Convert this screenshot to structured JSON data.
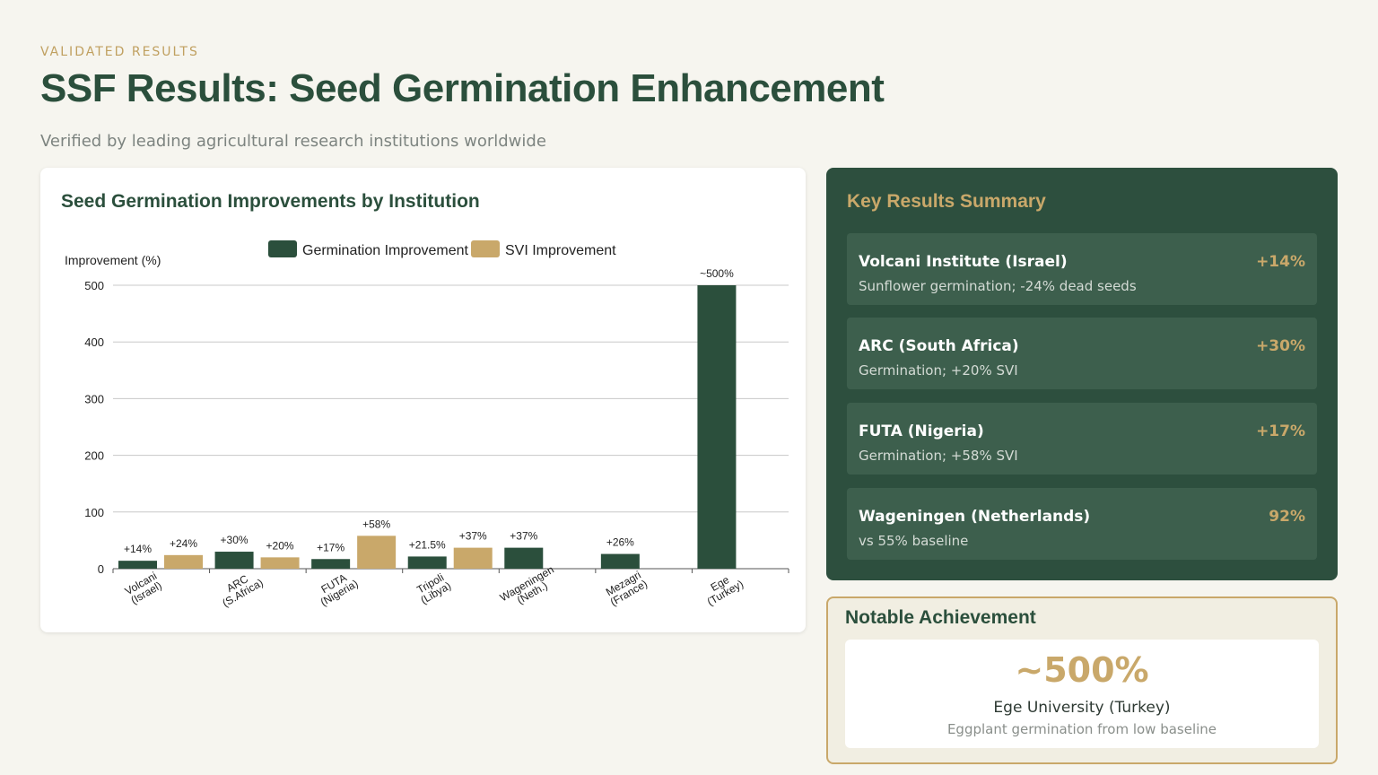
{
  "header": {
    "eyebrow": "VALIDATED RESULTS",
    "title": "SSF Results: Seed Germination Enhancement",
    "subtitle": "Verified by leading agricultural research institutions worldwide"
  },
  "chart_card": {
    "title": "Seed Germination Improvements by Institution"
  },
  "chart_data": {
    "type": "bar",
    "title": "Seed Germination Improvements by Institution",
    "ylabel": "Improvement (%)",
    "xlabel": "",
    "ylim": [
      0,
      500
    ],
    "yticks": [
      0,
      100,
      200,
      300,
      400,
      500
    ],
    "grid": true,
    "legend_position": "top",
    "categories": [
      [
        "Volcani",
        "(Israel)"
      ],
      [
        "ARC",
        "(S.Africa)"
      ],
      [
        "FUTA",
        "(Nigeria)"
      ],
      [
        "Tripoli",
        "(Libya)"
      ],
      [
        "Wageningen",
        "(Neth.)"
      ],
      [
        "Mezagri",
        "(France)"
      ],
      [
        "Ege",
        "(Turkey)"
      ]
    ],
    "series": [
      {
        "name": "Germination Improvement",
        "color": "#2b4f3c",
        "values": [
          14,
          30,
          17,
          21.5,
          37,
          26,
          500
        ],
        "labels": [
          "+14%",
          "+30%",
          "+17%",
          "+21.5%",
          "+37%",
          "+26%",
          "~500%"
        ]
      },
      {
        "name": "SVI Improvement",
        "color": "#c9a86a",
        "values": [
          24,
          20,
          58,
          37,
          null,
          null,
          null
        ],
        "labels": [
          "+24%",
          "+20%",
          "+58%",
          "+37%",
          null,
          null,
          null
        ]
      }
    ]
  },
  "summary": {
    "title": "Key Results Summary",
    "items": [
      {
        "name": "Volcani Institute (Israel)",
        "detail": "Sunflower germination; -24% dead seeds",
        "value": "+14%"
      },
      {
        "name": "ARC (South Africa)",
        "detail": "Germination; +20% SVI",
        "value": "+30%"
      },
      {
        "name": "FUTA (Nigeria)",
        "detail": "Germination; +58% SVI",
        "value": "+17%"
      },
      {
        "name": "Wageningen (Netherlands)",
        "detail": "vs 55% baseline",
        "value": "92%"
      }
    ]
  },
  "notable": {
    "title": "Notable Achievement",
    "big_value": "~500%",
    "institution": "Ege University (Turkey)",
    "description": "Eggplant germination from low baseline"
  }
}
